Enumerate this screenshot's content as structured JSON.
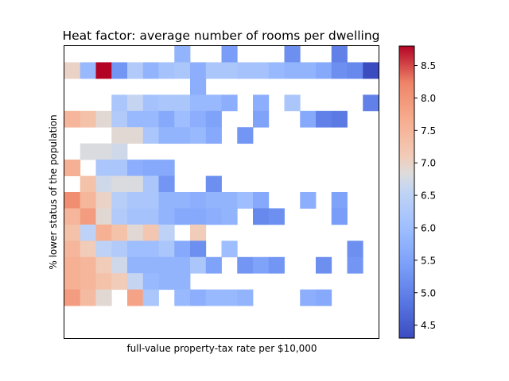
{
  "chart_data": {
    "type": "heatmap",
    "title": "Heat factor: average number of rooms per dwelling",
    "xlabel": "full-value property-tax rate per $10,000",
    "ylabel": "% lower status of the population",
    "x_ticks": "none",
    "y_ticks": "none",
    "ncols": 20,
    "nrows": 18,
    "color_scale": {
      "colormap": "coolwarm",
      "min": 4.3,
      "max": 8.8,
      "min_color": "#3b4cc0",
      "mid_color": "#dddddd",
      "max_color": "#b40426",
      "ticks": [
        "4.5",
        "5.0",
        "5.5",
        "6.0",
        "6.5",
        "7.0",
        "7.5",
        "8.0",
        "8.5"
      ]
    },
    "cells": [
      [
        0,
        7,
        5.8
      ],
      [
        0,
        10,
        5.4
      ],
      [
        0,
        14,
        5.2
      ],
      [
        0,
        17,
        5.0
      ],
      [
        1,
        0,
        7.0
      ],
      [
        1,
        1,
        5.9
      ],
      [
        1,
        2,
        8.8
      ],
      [
        1,
        3,
        5.3
      ],
      [
        1,
        4,
        6.3
      ],
      [
        1,
        5,
        5.8
      ],
      [
        1,
        6,
        6.1
      ],
      [
        1,
        7,
        6.2
      ],
      [
        1,
        8,
        5.7
      ],
      [
        1,
        9,
        6.2
      ],
      [
        1,
        10,
        6.2
      ],
      [
        1,
        11,
        6.1
      ],
      [
        1,
        12,
        6.1
      ],
      [
        1,
        13,
        5.9
      ],
      [
        1,
        14,
        5.8
      ],
      [
        1,
        15,
        5.8
      ],
      [
        1,
        16,
        5.6
      ],
      [
        1,
        17,
        5.2
      ],
      [
        1,
        18,
        5.1
      ],
      [
        1,
        19,
        4.3
      ],
      [
        2,
        8,
        5.7
      ],
      [
        3,
        3,
        6.2
      ],
      [
        3,
        4,
        6.6
      ],
      [
        3,
        5,
        6.1
      ],
      [
        3,
        6,
        6.2
      ],
      [
        3,
        7,
        6.2
      ],
      [
        3,
        8,
        5.9
      ],
      [
        3,
        9,
        5.9
      ],
      [
        3,
        10,
        5.7
      ],
      [
        3,
        12,
        5.7
      ],
      [
        3,
        14,
        6.2
      ],
      [
        3,
        19,
        5.0
      ],
      [
        4,
        0,
        7.5
      ],
      [
        4,
        1,
        7.3
      ],
      [
        4,
        2,
        6.9
      ],
      [
        4,
        3,
        6.3
      ],
      [
        4,
        4,
        5.9
      ],
      [
        4,
        5,
        5.9
      ],
      [
        4,
        6,
        5.6
      ],
      [
        4,
        7,
        6.0
      ],
      [
        4,
        8,
        5.7
      ],
      [
        4,
        9,
        5.5
      ],
      [
        4,
        12,
        5.5
      ],
      [
        4,
        15,
        5.6
      ],
      [
        4,
        16,
        5.0
      ],
      [
        4,
        17,
        4.9
      ],
      [
        5,
        3,
        6.9
      ],
      [
        5,
        4,
        6.9
      ],
      [
        5,
        5,
        6.2
      ],
      [
        5,
        6,
        5.8
      ],
      [
        5,
        7,
        5.8
      ],
      [
        5,
        8,
        5.9
      ],
      [
        5,
        9,
        5.6
      ],
      [
        5,
        11,
        5.3
      ],
      [
        6,
        1,
        6.8
      ],
      [
        6,
        2,
        6.8
      ],
      [
        6,
        3,
        6.7
      ],
      [
        7,
        0,
        7.6
      ],
      [
        7,
        2,
        6.2
      ],
      [
        7,
        3,
        6.2
      ],
      [
        7,
        4,
        5.7
      ],
      [
        7,
        5,
        5.6
      ],
      [
        7,
        6,
        5.6
      ],
      [
        8,
        1,
        7.3
      ],
      [
        8,
        2,
        6.7
      ],
      [
        8,
        3,
        6.8
      ],
      [
        8,
        4,
        6.8
      ],
      [
        8,
        5,
        6.2
      ],
      [
        8,
        6,
        5.3
      ],
      [
        8,
        9,
        5.2
      ],
      [
        9,
        0,
        8.1
      ],
      [
        9,
        1,
        7.5
      ],
      [
        9,
        2,
        7.0
      ],
      [
        9,
        3,
        6.4
      ],
      [
        9,
        4,
        6.2
      ],
      [
        9,
        5,
        6.2
      ],
      [
        9,
        6,
        5.8
      ],
      [
        9,
        7,
        5.8
      ],
      [
        9,
        8,
        5.7
      ],
      [
        9,
        9,
        5.8
      ],
      [
        9,
        10,
        5.8
      ],
      [
        9,
        11,
        6.0
      ],
      [
        9,
        12,
        5.6
      ],
      [
        9,
        15,
        5.7
      ],
      [
        9,
        17,
        5.5
      ],
      [
        10,
        0,
        7.5
      ],
      [
        10,
        1,
        7.9
      ],
      [
        10,
        2,
        6.9
      ],
      [
        10,
        3,
        6.3
      ],
      [
        10,
        4,
        6.1
      ],
      [
        10,
        5,
        6.1
      ],
      [
        10,
        6,
        5.8
      ],
      [
        10,
        7,
        5.6
      ],
      [
        10,
        8,
        5.6
      ],
      [
        10,
        9,
        5.7
      ],
      [
        10,
        10,
        5.8
      ],
      [
        10,
        12,
        5.1
      ],
      [
        10,
        13,
        5.2
      ],
      [
        10,
        17,
        5.4
      ],
      [
        11,
        0,
        7.3
      ],
      [
        11,
        1,
        6.5
      ],
      [
        11,
        2,
        7.6
      ],
      [
        11,
        3,
        7.3
      ],
      [
        11,
        4,
        6.9
      ],
      [
        11,
        5,
        7.2
      ],
      [
        11,
        6,
        6.5
      ],
      [
        11,
        8,
        7.1
      ],
      [
        12,
        0,
        7.5
      ],
      [
        12,
        1,
        7.1
      ],
      [
        12,
        2,
        6.5
      ],
      [
        12,
        3,
        6.3
      ],
      [
        12,
        4,
        6.0
      ],
      [
        12,
        5,
        6.0
      ],
      [
        12,
        6,
        6.2
      ],
      [
        12,
        7,
        5.6
      ],
      [
        12,
        8,
        5.2
      ],
      [
        12,
        10,
        6.0
      ],
      [
        12,
        18,
        5.2
      ],
      [
        13,
        0,
        7.6
      ],
      [
        13,
        1,
        7.5
      ],
      [
        13,
        2,
        7.1
      ],
      [
        13,
        3,
        6.7
      ],
      [
        13,
        4,
        5.8
      ],
      [
        13,
        5,
        5.8
      ],
      [
        13,
        6,
        5.8
      ],
      [
        13,
        7,
        5.8
      ],
      [
        13,
        8,
        6.2
      ],
      [
        13,
        9,
        5.5
      ],
      [
        13,
        11,
        5.3
      ],
      [
        13,
        12,
        5.5
      ],
      [
        13,
        13,
        5.3
      ],
      [
        13,
        16,
        5.2
      ],
      [
        13,
        18,
        5.3
      ],
      [
        14,
        0,
        7.6
      ],
      [
        14,
        1,
        7.5
      ],
      [
        14,
        2,
        7.3
      ],
      [
        14,
        3,
        7.1
      ],
      [
        14,
        4,
        6.6
      ],
      [
        14,
        5,
        5.9
      ],
      [
        14,
        6,
        5.8
      ],
      [
        14,
        7,
        5.8
      ],
      [
        15,
        0,
        7.9
      ],
      [
        15,
        1,
        7.4
      ],
      [
        15,
        2,
        6.9
      ],
      [
        15,
        4,
        7.8
      ],
      [
        15,
        5,
        6.2
      ],
      [
        15,
        7,
        5.9
      ],
      [
        15,
        8,
        5.7
      ],
      [
        15,
        9,
        5.9
      ],
      [
        15,
        10,
        5.9
      ],
      [
        15,
        11,
        5.8
      ],
      [
        15,
        15,
        5.7
      ],
      [
        15,
        16,
        5.6
      ]
    ]
  }
}
